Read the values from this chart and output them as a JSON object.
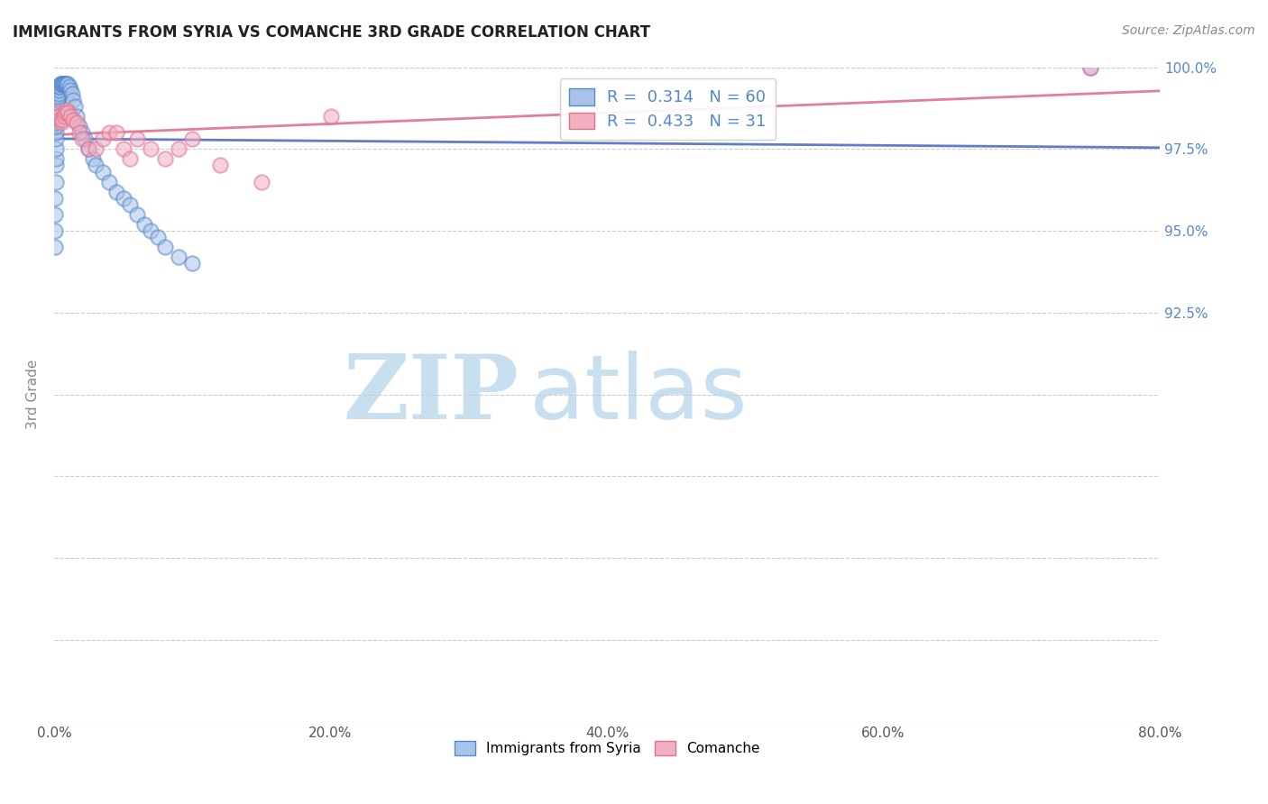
{
  "title": "IMMIGRANTS FROM SYRIA VS COMANCHE 3RD GRADE CORRELATION CHART",
  "source": "Source: ZipAtlas.com",
  "ylabel": "3rd Grade",
  "xlim": [
    0.0,
    80.0
  ],
  "ylim": [
    80.0,
    100.0
  ],
  "xtick_labels": [
    "0.0%",
    "20.0%",
    "40.0%",
    "60.0%",
    "80.0%"
  ],
  "xtick_values": [
    0.0,
    20.0,
    40.0,
    60.0,
    80.0
  ],
  "ytick_labels": [
    "100.0%",
    "97.5%",
    "95.0%",
    "92.5%"
  ],
  "ytick_values": [
    100.0,
    97.5,
    95.0,
    92.5
  ],
  "legend_series": [
    {
      "label": "Immigrants from Syria",
      "color": "#a8c4e8",
      "edge_color": "#5588cc",
      "R": 0.314,
      "N": 60
    },
    {
      "label": "Comanche",
      "color": "#f0b0c0",
      "edge_color": "#e07090",
      "R": 0.433,
      "N": 31
    }
  ],
  "blue_scatter_x": [
    0.05,
    0.07,
    0.08,
    0.09,
    0.1,
    0.1,
    0.11,
    0.12,
    0.13,
    0.14,
    0.15,
    0.16,
    0.17,
    0.18,
    0.19,
    0.2,
    0.22,
    0.23,
    0.25,
    0.27,
    0.3,
    0.32,
    0.35,
    0.4,
    0.45,
    0.5,
    0.55,
    0.6,
    0.65,
    0.7,
    0.75,
    0.8,
    0.85,
    0.9,
    1.0,
    1.1,
    1.2,
    1.3,
    1.4,
    1.5,
    1.6,
    1.8,
    2.0,
    2.2,
    2.5,
    2.8,
    3.0,
    3.5,
    4.0,
    4.5,
    5.0,
    5.5,
    6.0,
    6.5,
    7.0,
    7.5,
    8.0,
    9.0,
    10.0,
    75.0
  ],
  "blue_scatter_y": [
    94.5,
    95.0,
    95.5,
    96.0,
    96.5,
    97.0,
    97.2,
    97.5,
    97.8,
    98.0,
    98.2,
    98.3,
    98.5,
    98.6,
    98.7,
    98.8,
    98.9,
    99.0,
    99.0,
    99.1,
    99.2,
    99.3,
    99.4,
    99.4,
    99.5,
    99.5,
    99.5,
    99.5,
    99.5,
    99.5,
    99.5,
    99.5,
    99.5,
    99.5,
    99.5,
    99.4,
    99.3,
    99.2,
    99.0,
    98.8,
    98.5,
    98.2,
    98.0,
    97.8,
    97.5,
    97.2,
    97.0,
    96.8,
    96.5,
    96.2,
    96.0,
    95.8,
    95.5,
    95.2,
    95.0,
    94.8,
    94.5,
    94.2,
    94.0,
    100.0
  ],
  "pink_scatter_x": [
    0.1,
    0.2,
    0.3,
    0.4,
    0.5,
    0.6,
    0.7,
    0.8,
    0.9,
    1.0,
    1.2,
    1.4,
    1.6,
    1.8,
    2.0,
    2.5,
    3.0,
    3.5,
    4.0,
    4.5,
    5.0,
    5.5,
    6.0,
    7.0,
    8.0,
    9.0,
    10.0,
    12.0,
    15.0,
    20.0,
    75.0
  ],
  "pink_scatter_y": [
    98.5,
    98.6,
    98.5,
    98.4,
    98.3,
    98.4,
    98.5,
    98.6,
    98.7,
    98.6,
    98.5,
    98.4,
    98.3,
    98.0,
    97.8,
    97.5,
    97.5,
    97.8,
    98.0,
    98.0,
    97.5,
    97.2,
    97.8,
    97.5,
    97.2,
    97.5,
    97.8,
    97.0,
    96.5,
    98.5,
    100.0
  ],
  "blue_line_color": "#4466bb",
  "pink_line_color": "#dd6688",
  "watermark_zip": "ZIP",
  "watermark_atlas": "atlas",
  "watermark_color": "#c8dff0",
  "background_color": "#ffffff",
  "grid_color": "#cccccc",
  "title_color": "#222222",
  "axis_label_color": "#888888",
  "ytick_right_color": "#5588cc"
}
